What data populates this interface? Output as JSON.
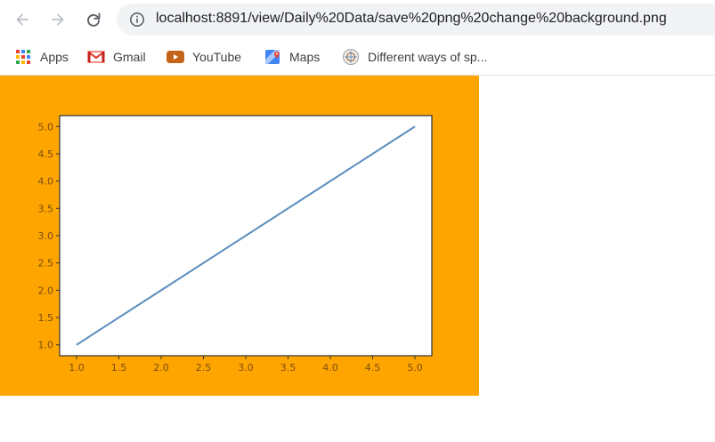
{
  "colors": {
    "figure_background": "#ffa500",
    "plot_background": "#ffffff",
    "line": "#5b8fbe",
    "tick_text": "#7a4d14",
    "axes_edge": "#333333"
  },
  "toolbar": {
    "back_icon": "arrow-left-icon",
    "forward_icon": "arrow-right-icon",
    "reload_icon": "reload-icon",
    "info_icon": "info-circle-icon",
    "url": "localhost:8891/view/Daily%20Data/save%20png%20change%20background.png"
  },
  "bookmarks": [
    {
      "label": "Apps",
      "icon": "apps-grid-icon"
    },
    {
      "label": "Gmail",
      "icon": "gmail-icon"
    },
    {
      "label": "YouTube",
      "icon": "youtube-icon"
    },
    {
      "label": "Maps",
      "icon": "maps-icon"
    },
    {
      "label": "Different ways of sp...",
      "icon": "site-favicon-icon"
    }
  ],
  "chart_data": {
    "type": "line",
    "title": "",
    "xlabel": "",
    "ylabel": "",
    "x": [
      1,
      2,
      3,
      4,
      5
    ],
    "series": [
      {
        "values": [
          1,
          2,
          3,
          4,
          5
        ]
      }
    ],
    "xlim": [
      0.8,
      5.2
    ],
    "ylim": [
      0.8,
      5.2
    ],
    "xticks": [
      "1.0",
      "1.5",
      "2.0",
      "2.5",
      "3.0",
      "3.5",
      "4.0",
      "4.5",
      "5.0"
    ],
    "yticks": [
      "1.0",
      "1.5",
      "2.0",
      "2.5",
      "3.0",
      "3.5",
      "4.0",
      "4.5",
      "5.0"
    ],
    "grid": false,
    "legend": "none"
  }
}
